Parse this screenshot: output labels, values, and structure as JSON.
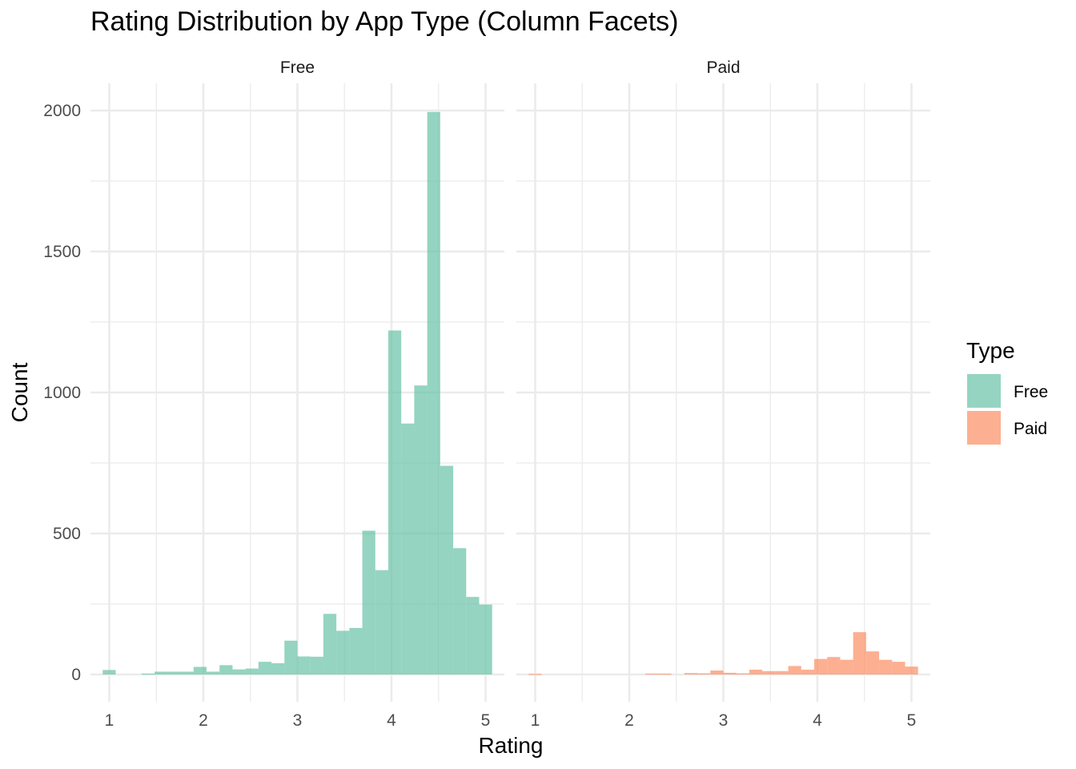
{
  "chart_data": {
    "type": "bar",
    "subtype": "faceted-histogram",
    "title": "Rating Distribution by App Type (Column Facets)",
    "xlabel": "Rating",
    "ylabel": "Count",
    "xlim": [
      0.8,
      5.2
    ],
    "ylim": [
      -100,
      2100
    ],
    "x_ticks": [
      1,
      2,
      3,
      4,
      5
    ],
    "y_ticks": [
      0,
      500,
      1000,
      1500,
      2000
    ],
    "grid": true,
    "bins": [
      [
        0.93,
        1.068
      ],
      [
        1.068,
        1.206
      ],
      [
        1.206,
        1.344
      ],
      [
        1.344,
        1.482
      ],
      [
        1.482,
        1.62
      ],
      [
        1.62,
        1.758
      ],
      [
        1.758,
        1.896
      ],
      [
        1.896,
        2.034
      ],
      [
        2.034,
        2.172
      ],
      [
        2.172,
        2.31
      ],
      [
        2.31,
        2.448
      ],
      [
        2.448,
        2.586
      ],
      [
        2.586,
        2.724
      ],
      [
        2.724,
        2.862
      ],
      [
        2.862,
        3.0
      ],
      [
        3.0,
        3.138
      ],
      [
        3.138,
        3.276
      ],
      [
        3.276,
        3.414
      ],
      [
        3.414,
        3.552
      ],
      [
        3.552,
        3.69
      ],
      [
        3.69,
        3.828
      ],
      [
        3.828,
        3.966
      ],
      [
        3.966,
        4.104
      ],
      [
        4.104,
        4.242
      ],
      [
        4.242,
        4.38
      ],
      [
        4.38,
        4.518
      ],
      [
        4.518,
        4.656
      ],
      [
        4.656,
        4.794
      ],
      [
        4.794,
        4.932
      ],
      [
        4.932,
        5.07
      ]
    ],
    "facets": [
      "Free",
      "Paid"
    ],
    "series": [
      {
        "name": "Free",
        "color": "#66c2a5",
        "values": [
          16,
          0,
          0,
          3,
          10,
          10,
          10,
          27,
          10,
          33,
          18,
          21,
          45,
          40,
          120,
          64,
          63,
          215,
          155,
          165,
          510,
          370,
          1220,
          890,
          1025,
          1995,
          740,
          448,
          275,
          248
        ]
      },
      {
        "name": "Paid",
        "color": "#fc8d62",
        "values": [
          2,
          0,
          0,
          0,
          0,
          0,
          0,
          0,
          0,
          3,
          3,
          0,
          5,
          4,
          14,
          6,
          4,
          17,
          12,
          12,
          30,
          17,
          55,
          62,
          52,
          150,
          82,
          52,
          45,
          28
        ]
      }
    ],
    "legend": {
      "title": "Type",
      "position": "right",
      "entries": [
        "Free",
        "Paid"
      ]
    }
  }
}
